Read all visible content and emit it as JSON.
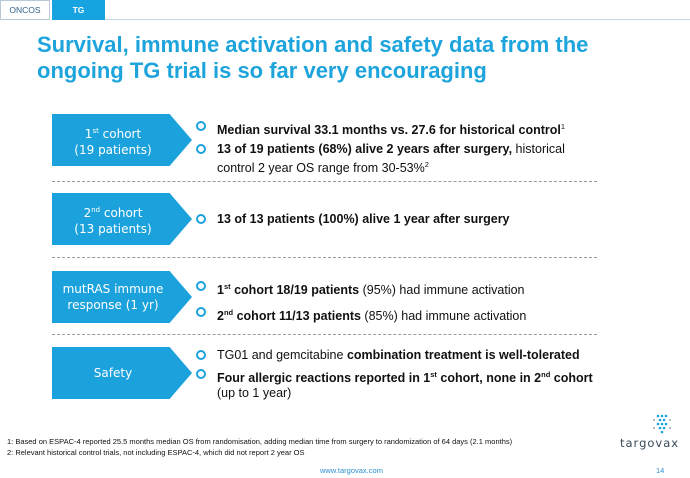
{
  "tabs": [
    {
      "label": "ONCOS",
      "active": false
    },
    {
      "label": "TG",
      "active": true
    }
  ],
  "title": "Survival, immune activation and safety data from the ongoing TG trial is so far very encouraging",
  "rows": [
    {
      "label": {
        "pre": "1",
        "sup": "st",
        "post": " cohort",
        "sub": "(19 patients)"
      },
      "bullets": [
        [
          {
            "t": "Median survival 33.1 months vs. 27.6 for historical control",
            "b": true
          },
          {
            "t": "1",
            "sup": true
          }
        ],
        [
          {
            "t": "13 of 19 patients (68%) alive 2 years after surgery,",
            "b": true
          },
          {
            "t": " historical control 2 year OS range from 30-53%"
          },
          {
            "t": "2",
            "sup": true
          }
        ]
      ]
    },
    {
      "label": {
        "pre": "2",
        "sup": "nd",
        "post": " cohort",
        "sub": "(13 patients)"
      },
      "bullets": [
        [
          {
            "t": "13 of 13 patients (100%) alive 1 year after surgery",
            "b": true
          }
        ]
      ]
    },
    {
      "label": {
        "pre": "mutRAS immune",
        "sup": "",
        "post": "",
        "sub": "response (1 yr)"
      },
      "bullets": [
        [
          {
            "t": "1",
            "b": true
          },
          {
            "t": "st",
            "b": true,
            "sup": true
          },
          {
            "t": " cohort 18/19 patients",
            "b": true
          },
          {
            "t": " (95%) had immune activation"
          }
        ],
        [
          {
            "t": "2",
            "b": true
          },
          {
            "t": "nd",
            "b": true,
            "sup": true
          },
          {
            "t": " cohort 11/13 patients",
            "b": true
          },
          {
            "t": " (85%) had immune activation"
          }
        ]
      ]
    },
    {
      "label": {
        "pre": "Safety",
        "sup": "",
        "post": "",
        "sub": ""
      },
      "bullets": [
        [
          {
            "t": "TG01 and gemcitabine "
          },
          {
            "t": "combination treatment is well-tolerated",
            "b": true
          }
        ],
        [
          {
            "t": "Four allergic reactions reported in 1",
            "b": true
          },
          {
            "t": "st",
            "b": true,
            "sup": true
          },
          {
            "t": " cohort, none in 2",
            "b": true
          },
          {
            "t": "nd",
            "b": true,
            "sup": true
          },
          {
            "t": " cohort",
            "b": true
          },
          {
            "t": " (up to 1 year)"
          }
        ]
      ]
    }
  ],
  "footnotes": [
    "1: Based on ESPAC-4 reported 25.5 months median OS from randomisation, adding median time from surgery to randomization of 64 days (2.1 months)",
    "2: Relevant historical control trials, not including ESPAC-4, which did not report 2 year OS"
  ],
  "footer": {
    "url": "www.targovax.com",
    "page": "14"
  },
  "logo": {
    "text": "targovax"
  },
  "colors": {
    "accent": "#1ba2dd",
    "title": "#1ea4dc",
    "link": "#2d8fd0"
  }
}
